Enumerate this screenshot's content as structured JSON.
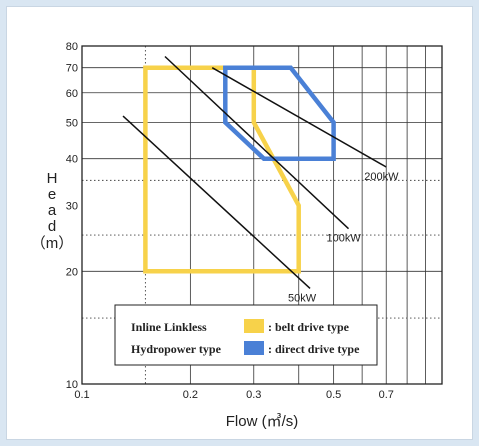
{
  "chart_data": {
    "type": "area",
    "title": "",
    "xlabel": "Flow (㎥/s)",
    "ylabel_chars": [
      "H",
      "e",
      "a",
      "d"
    ],
    "ylabel_unit": "（m）",
    "x_scale": "log",
    "y_scale": "log",
    "xlim": [
      0.1,
      1.0
    ],
    "ylim": [
      10,
      80
    ],
    "x_ticks": [
      0.1,
      0.2,
      0.3,
      0.5,
      0.7
    ],
    "x_tick_labels": [
      "0.1",
      "0.2",
      "0.3",
      "0.5",
      "0.7"
    ],
    "y_ticks": [
      10,
      20,
      30,
      40,
      50,
      60,
      70,
      80
    ],
    "y_tick_labels": [
      "10",
      "20",
      "30",
      "40",
      "50",
      "60",
      "70",
      "80"
    ],
    "x_grid": [
      0.1,
      0.2,
      0.3,
      0.4,
      0.5,
      0.6,
      0.7,
      0.8,
      0.9,
      1.0
    ],
    "x_grid_dotted": [
      0.15
    ],
    "y_grid": [
      10,
      20,
      40,
      50,
      60,
      70,
      80
    ],
    "y_grid_dotted": [
      15,
      25,
      35
    ],
    "grid": true,
    "series": [
      {
        "name": ": belt drive type",
        "color": "#f7d24a",
        "points": [
          [
            0.15,
            20
          ],
          [
            0.15,
            70
          ],
          [
            0.3,
            70
          ],
          [
            0.3,
            50
          ],
          [
            0.4,
            30
          ],
          [
            0.4,
            20
          ]
        ]
      },
      {
        "name": ": direct drive type",
        "color": "#4a80d6",
        "points": [
          [
            0.25,
            70
          ],
          [
            0.38,
            70
          ],
          [
            0.5,
            50
          ],
          [
            0.5,
            40
          ],
          [
            0.32,
            40
          ],
          [
            0.25,
            50
          ]
        ]
      }
    ],
    "power_lines": [
      {
        "label": "200kW",
        "x1": 0.23,
        "y1": 70,
        "x2": 0.7,
        "y2": 38
      },
      {
        "label": "100kW",
        "x1": 0.17,
        "y1": 75,
        "x2": 0.55,
        "y2": 26
      },
      {
        "label": "50kW",
        "x1": 0.13,
        "y1": 52,
        "x2": 0.43,
        "y2": 18
      }
    ],
    "legend": {
      "placement": "bottom",
      "title_lines": [
        "Inline Linkless",
        "Hydropower type"
      ]
    }
  }
}
